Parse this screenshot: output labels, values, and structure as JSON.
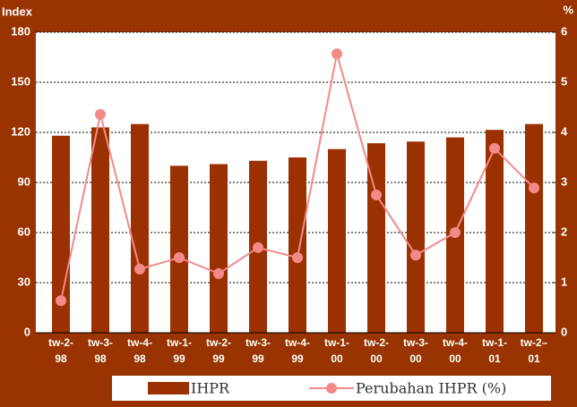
{
  "chart_data": {
    "type": "bar_line",
    "y_label": "Index",
    "y2_label": "%",
    "categories": [
      [
        "tw-2-",
        "98"
      ],
      [
        "tw-3-",
        "98"
      ],
      [
        "tw-4-",
        "98"
      ],
      [
        "tw-1-",
        "99"
      ],
      [
        "tw-2-",
        "99"
      ],
      [
        "tw-3-",
        "99"
      ],
      [
        "tw-4-",
        "99"
      ],
      [
        "tw-1-",
        "00"
      ],
      [
        "tw-2-",
        "00"
      ],
      [
        "tw-3-",
        "00"
      ],
      [
        "tw-4-",
        "00"
      ],
      [
        "tw-1-",
        "01"
      ],
      [
        "tw-2–",
        "01"
      ]
    ],
    "series": [
      {
        "name": "IHPR",
        "color": "#9b3000",
        "type": "bar",
        "values": [
          118,
          123,
          125,
          100,
          101,
          103,
          105,
          110,
          113.5,
          114.5,
          117,
          121.5,
          125
        ]
      },
      {
        "name": "Perubahan IHPR (%)",
        "color": "#f28a8a",
        "type": "line",
        "axis": "y2",
        "values": [
          0.64,
          4.36,
          1.27,
          1.5,
          1.18,
          1.7,
          1.5,
          5.57,
          2.75,
          1.55,
          2.0,
          3.68,
          2.89
        ]
      }
    ],
    "ylim": [
      0,
      180
    ],
    "yticks": [
      0,
      30,
      60,
      90,
      120,
      150,
      180
    ],
    "y2lim": [
      0,
      6
    ],
    "y2ticks": [
      0,
      1,
      2,
      3,
      4,
      5,
      6
    ],
    "grid": true,
    "background": "#993300"
  }
}
